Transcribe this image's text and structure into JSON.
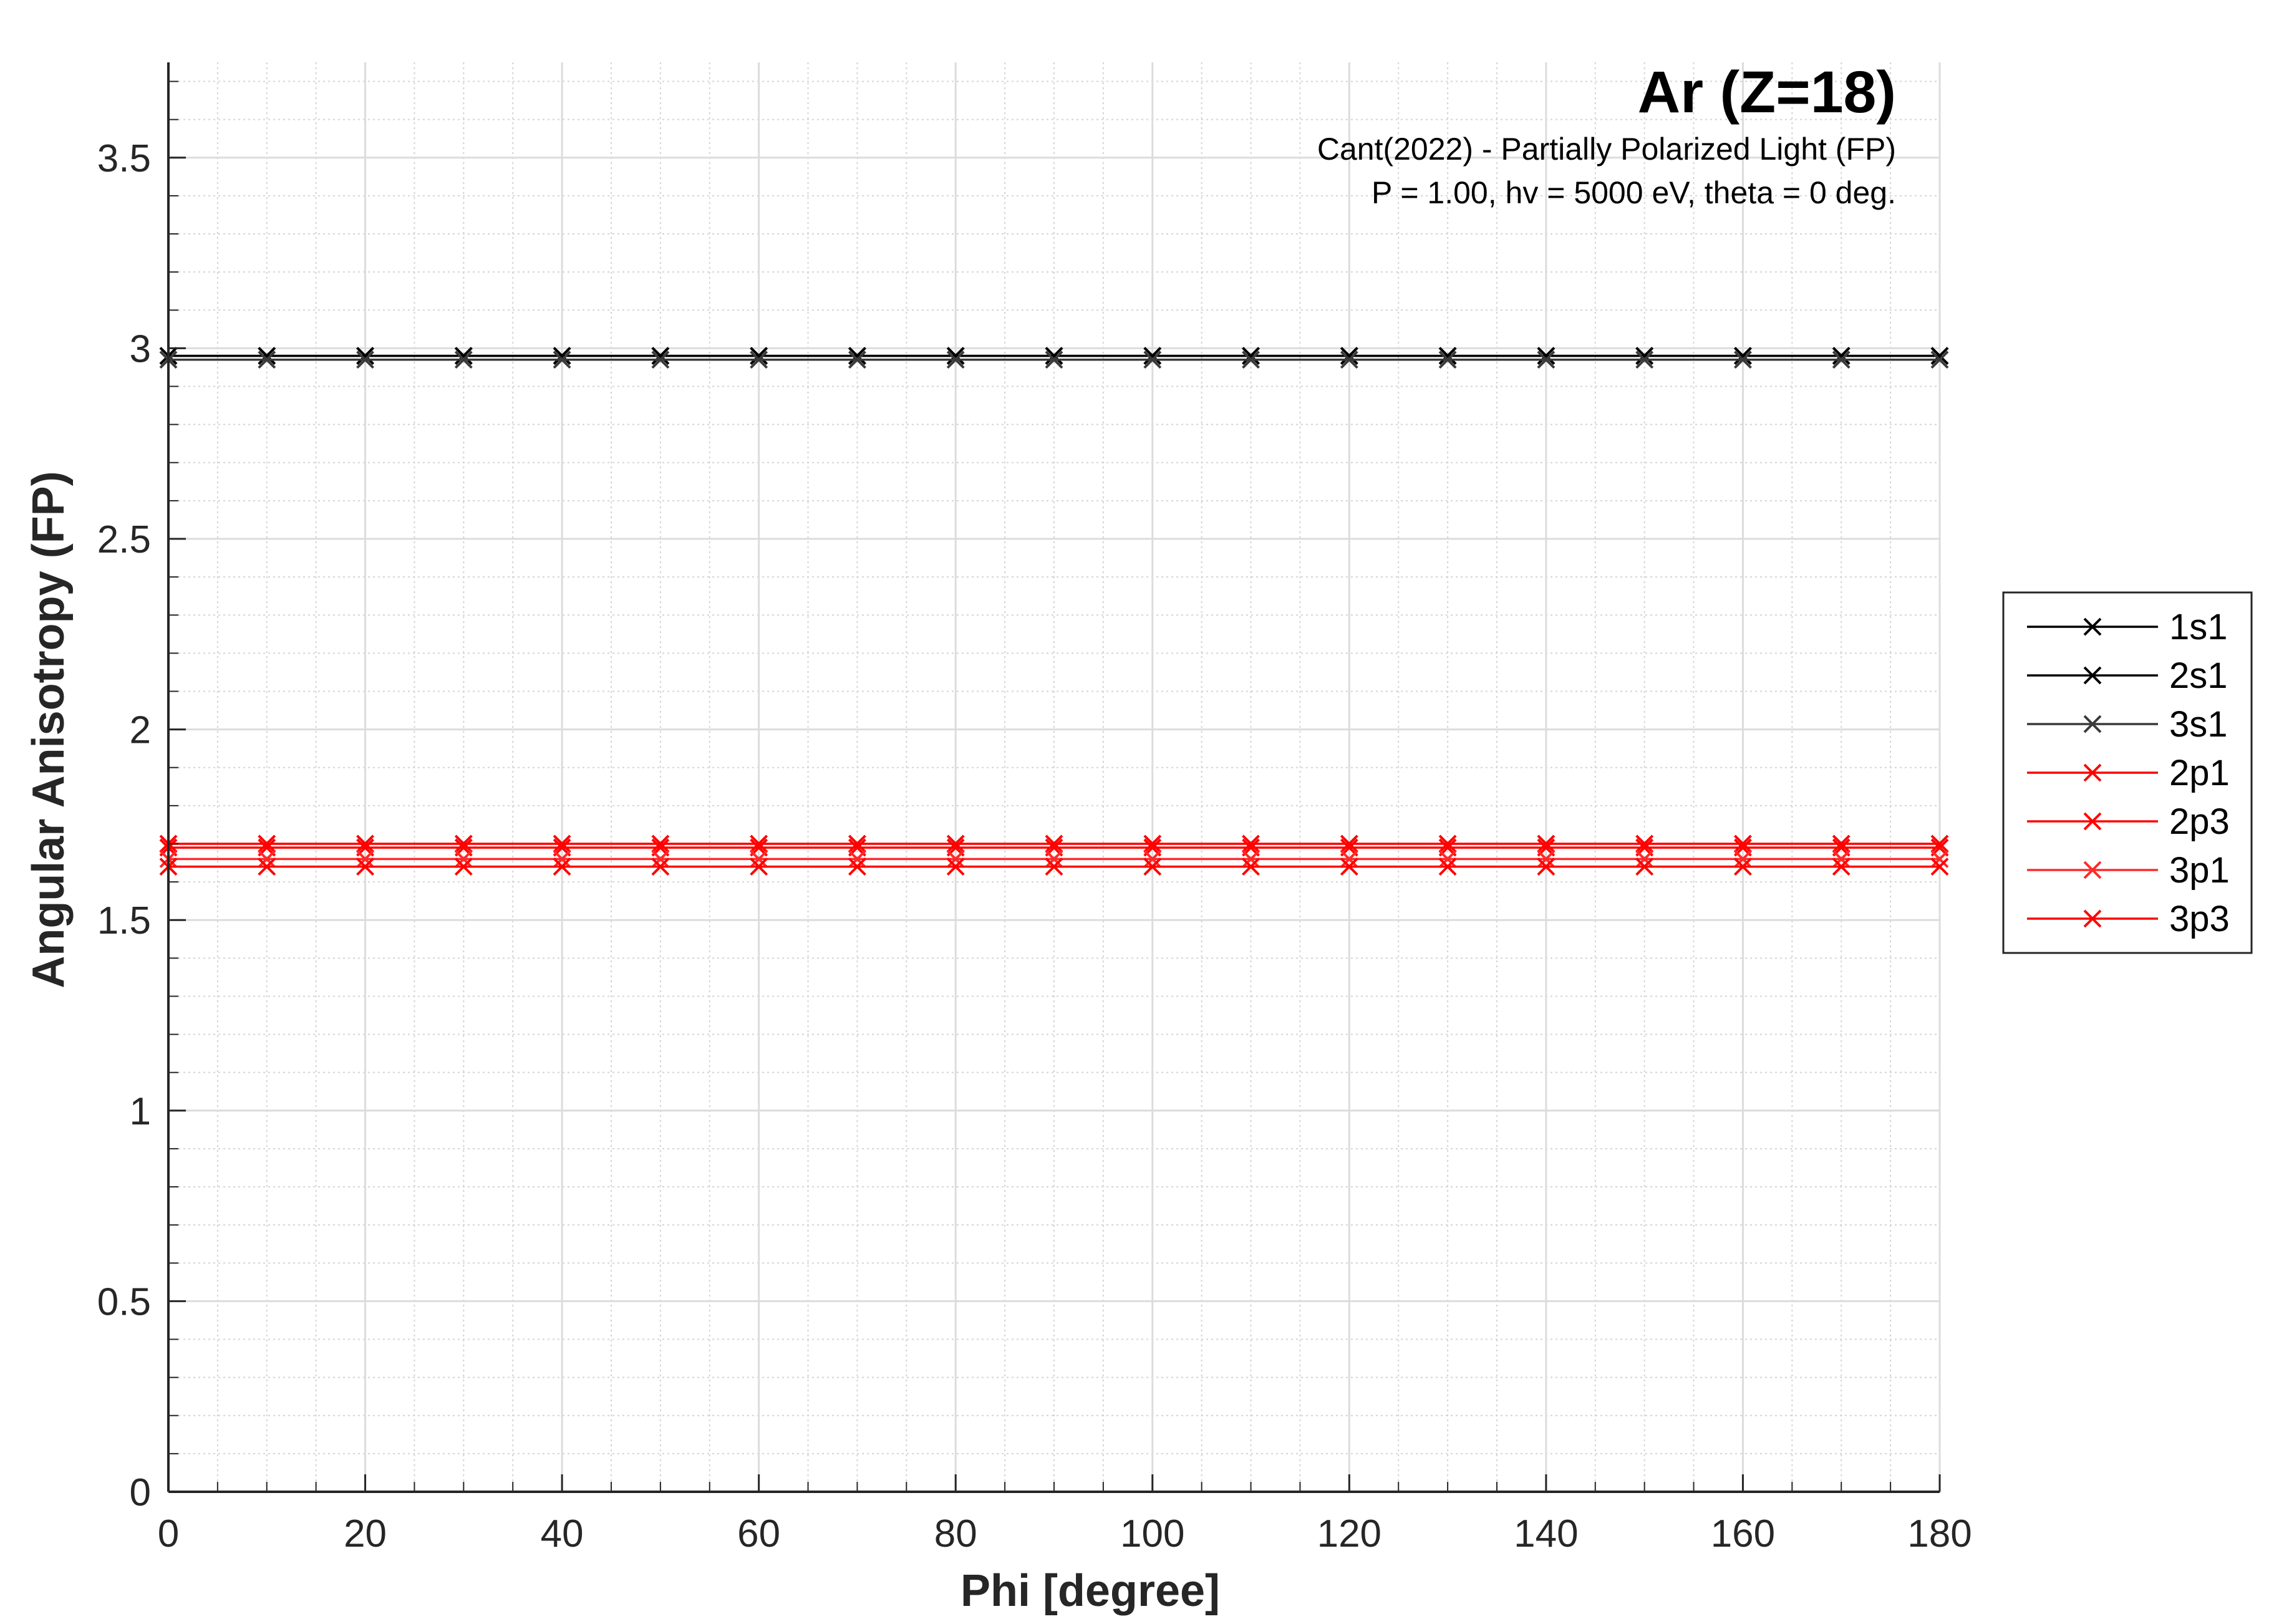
{
  "chart_data": {
    "type": "line",
    "title": "Ar (Z=18)",
    "annotations": [
      "Cant(2022) - Partially Polarized Light (FP)",
      "P = 1.00, hv = 5000 eV, theta = 0 deg."
    ],
    "xlabel": "Phi [degree]",
    "ylabel": "Angular Anisotropy (FP)",
    "xlim": [
      0,
      180
    ],
    "ylim": [
      0,
      3.75
    ],
    "xticks": [
      0,
      20,
      40,
      60,
      80,
      100,
      120,
      140,
      160,
      180
    ],
    "xtick_labels": [
      "0",
      "20",
      "40",
      "60",
      "80",
      "100",
      "120",
      "140",
      "160",
      "180"
    ],
    "yticks": [
      0,
      0.5,
      1,
      1.5,
      2,
      2.5,
      3,
      3.5
    ],
    "ytick_labels": [
      "0",
      "0.5",
      "1",
      "1.5",
      "2",
      "2.5",
      "3",
      "3.5"
    ],
    "grid": true,
    "minor_grid": true,
    "legend_position": "outside-right",
    "x": [
      0,
      10,
      20,
      30,
      40,
      50,
      60,
      70,
      80,
      90,
      100,
      110,
      120,
      130,
      140,
      150,
      160,
      170,
      180
    ],
    "series": [
      {
        "name": "1s1",
        "value": 2.98,
        "color": "#000000",
        "marker": "x"
      },
      {
        "name": "2s1",
        "value": 2.98,
        "color": "#000000",
        "marker": "x"
      },
      {
        "name": "3s1",
        "value": 2.97,
        "color": "#3a3a3a",
        "marker": "x"
      },
      {
        "name": "2p1",
        "value": 1.7,
        "color": "#ff0000",
        "marker": "x"
      },
      {
        "name": "2p3",
        "value": 1.69,
        "color": "#ff0000",
        "marker": "x"
      },
      {
        "name": "3p1",
        "value": 1.66,
        "color": "#ff2a2a",
        "marker": "x"
      },
      {
        "name": "3p3",
        "value": 1.64,
        "color": "#ff0000",
        "marker": "x"
      }
    ]
  }
}
